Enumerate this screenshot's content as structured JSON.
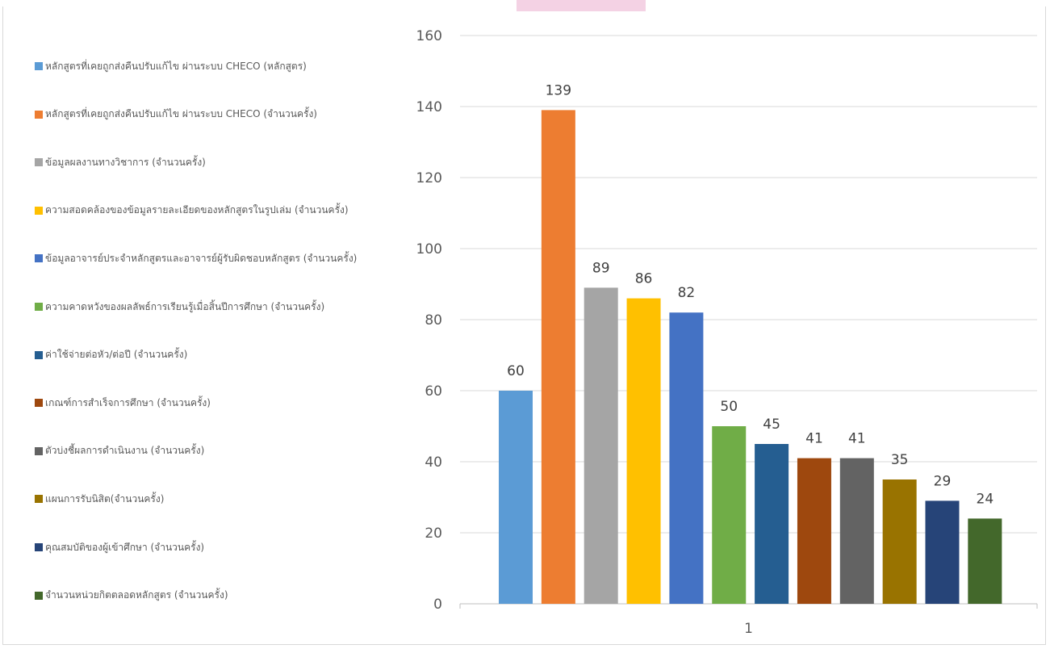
{
  "chart_data": {
    "type": "bar",
    "categories": [
      "1"
    ],
    "ylim": [
      0,
      160
    ],
    "yticks": [
      0,
      20,
      40,
      60,
      80,
      100,
      120,
      140,
      160
    ],
    "grid": true,
    "legend_position": "left",
    "data_labels": true,
    "series": [
      {
        "name": "หลักสูตรที่เคยถูกส่งคืนปรับแก้ไข ผ่านระบบ CHECO (หลักสูตร)",
        "values": [
          60
        ],
        "color": "#5b9bd5"
      },
      {
        "name": "หลักสูตรที่เคยถูกส่งคืนปรับแก้ไข ผ่านระบบ CHECO (จำนวนครั้ง)",
        "values": [
          139
        ],
        "color": "#ed7d31"
      },
      {
        "name": "ข้อมูลผลงานทางวิชาการ (จำนวนครั้ง)",
        "values": [
          89
        ],
        "color": "#a5a5a5"
      },
      {
        "name": "ความสอดคล้องของข้อมูลรายละเอียดของหลักสูตรในรูปเล่ม (จำนวนครั้ง)",
        "values": [
          86
        ],
        "color": "#ffc000"
      },
      {
        "name": "ข้อมูลอาจารย์ประจำหลักสูตรและอาจารย์ผู้รับผิดชอบหลักสูตร (จำนวนครั้ง)",
        "values": [
          82
        ],
        "color": "#4472c4"
      },
      {
        "name": "ความคาดหวังของผลลัพธ์การเรียนรู้เมื่อสิ้นปีการศึกษา (จำนวนครั้ง)",
        "values": [
          50
        ],
        "color": "#70ad47"
      },
      {
        "name": "ค่าใช้จ่ายต่อหัว/ต่อปี (จำนวนครั้ง)",
        "values": [
          45
        ],
        "color": "#255e91"
      },
      {
        "name": "เกณฑ์การสำเร็จการศึกษา (จำนวนครั้ง)",
        "values": [
          41
        ],
        "color": "#9e480e"
      },
      {
        "name": "ตัวบ่งชี้ผลการดำเนินงาน (จำนวนครั้ง)",
        "values": [
          41
        ],
        "color": "#636363"
      },
      {
        "name": "แผนการรับนิสิต(จำนวนครั้ง)",
        "values": [
          35
        ],
        "color": "#997300"
      },
      {
        "name": "คุณสมบัติของผู้เข้าศึกษา (จำนวนครั้ง)",
        "values": [
          29
        ],
        "color": "#264478"
      },
      {
        "name": "จำนวนหน่วยกิตตลอดหลักสูตร (จำนวนครั้ง)",
        "values": [
          24
        ],
        "color": "#43682b"
      }
    ]
  }
}
